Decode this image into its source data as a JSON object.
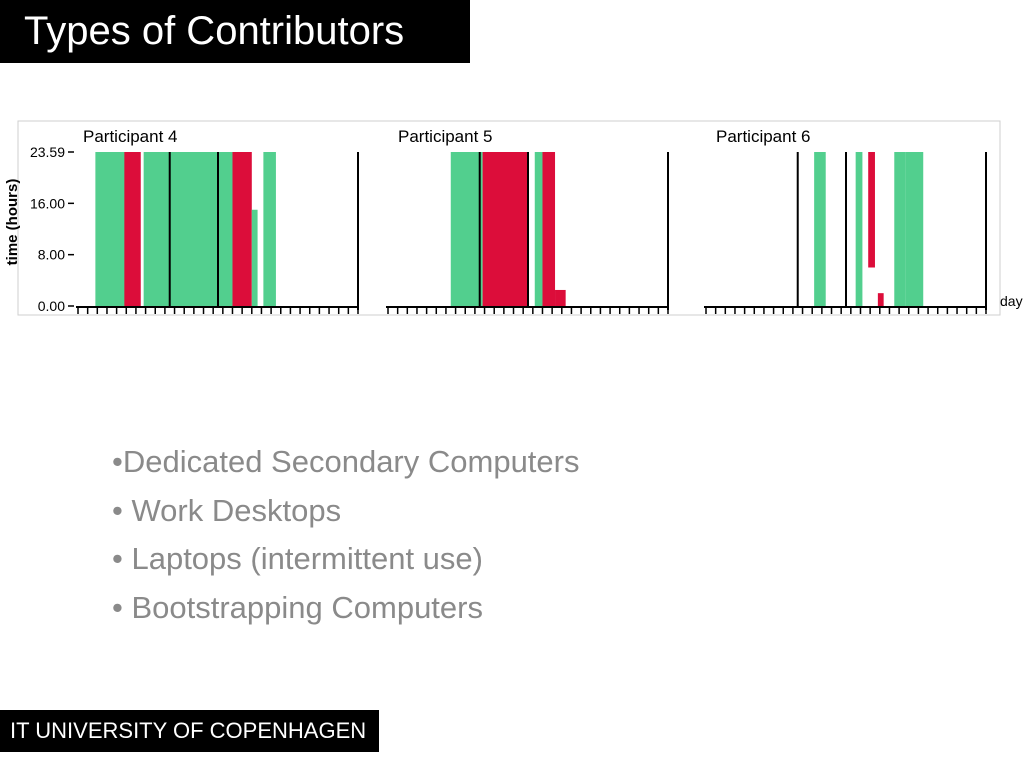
{
  "slide": {
    "title": "Types of Contributors",
    "footer": "IT UNIVERSITY OF COPENHAGEN",
    "bullets": [
      "•Dedicated Secondary Computers",
      "• Work Desktops",
      "• Laptops (intermittent use)",
      "• Bootstrapping Computers"
    ]
  },
  "colors": {
    "available": "#52cf8e",
    "contributing": "#dc0d3a",
    "axis": "#000000",
    "title_bg": "#000000",
    "bullet_text": "#8a8a8a"
  },
  "chart_data": {
    "type": "timeline",
    "ylabel": "time (hours)",
    "xlabel": "day",
    "y_ticks": [
      "23.59",
      "16.00",
      "8.00",
      "0.00"
    ],
    "ylim": [
      0,
      24
    ],
    "days_per_panel": 29,
    "legend": "none",
    "grid": false,
    "panels": [
      {
        "title": "Participant 4",
        "dividers": [
          9.5,
          14.5
        ],
        "blocks": [
          {
            "state": "available",
            "d0": 1.8,
            "d1": 5.2,
            "h0": 0,
            "h1": 24
          },
          {
            "state": "contributing",
            "d0": 4.8,
            "d1": 6.5,
            "h0": 0,
            "h1": 24
          },
          {
            "state": "available",
            "d0": 6.8,
            "d1": 16.0,
            "h0": 0,
            "h1": 24
          },
          {
            "state": "contributing",
            "d0": 16.0,
            "d1": 18.0,
            "h0": 0,
            "h1": 24
          },
          {
            "state": "available",
            "d0": 18.0,
            "d1": 18.6,
            "h0": 0,
            "h1": 15
          },
          {
            "state": "available",
            "d0": 19.2,
            "d1": 20.5,
            "h0": 0,
            "h1": 24
          }
        ]
      },
      {
        "title": "Participant 5",
        "dividers": [
          9.5,
          14.5
        ],
        "blocks": [
          {
            "state": "available",
            "d0": 6.5,
            "d1": 9.8,
            "h0": 0,
            "h1": 24
          },
          {
            "state": "contributing",
            "d0": 9.8,
            "d1": 14.5,
            "h0": 0,
            "h1": 24
          },
          {
            "state": "available",
            "d0": 15.2,
            "d1": 16.0,
            "h0": 0,
            "h1": 24
          },
          {
            "state": "contributing",
            "d0": 16.0,
            "d1": 17.3,
            "h0": 0,
            "h1": 24
          },
          {
            "state": "contributing",
            "d0": 17.3,
            "d1": 18.4,
            "h0": 0,
            "h1": 2.5
          }
        ]
      },
      {
        "title": "Participant 6",
        "dividers": [
          9.5,
          14.5
        ],
        "blocks": [
          {
            "state": "available",
            "d0": 11.2,
            "d1": 12.4,
            "h0": 0,
            "h1": 24
          },
          {
            "state": "available",
            "d0": 15.5,
            "d1": 16.2,
            "h0": 0,
            "h1": 24
          },
          {
            "state": "contributing",
            "d0": 16.8,
            "d1": 17.5,
            "h0": 6,
            "h1": 24
          },
          {
            "state": "contributing",
            "d0": 17.8,
            "d1": 18.4,
            "h0": 0,
            "h1": 2.0
          },
          {
            "state": "available",
            "d0": 19.5,
            "d1": 20.7,
            "h0": 0,
            "h1": 24
          },
          {
            "state": "available",
            "d0": 20.7,
            "d1": 22.5,
            "h0": 0,
            "h1": 24
          }
        ]
      }
    ]
  }
}
